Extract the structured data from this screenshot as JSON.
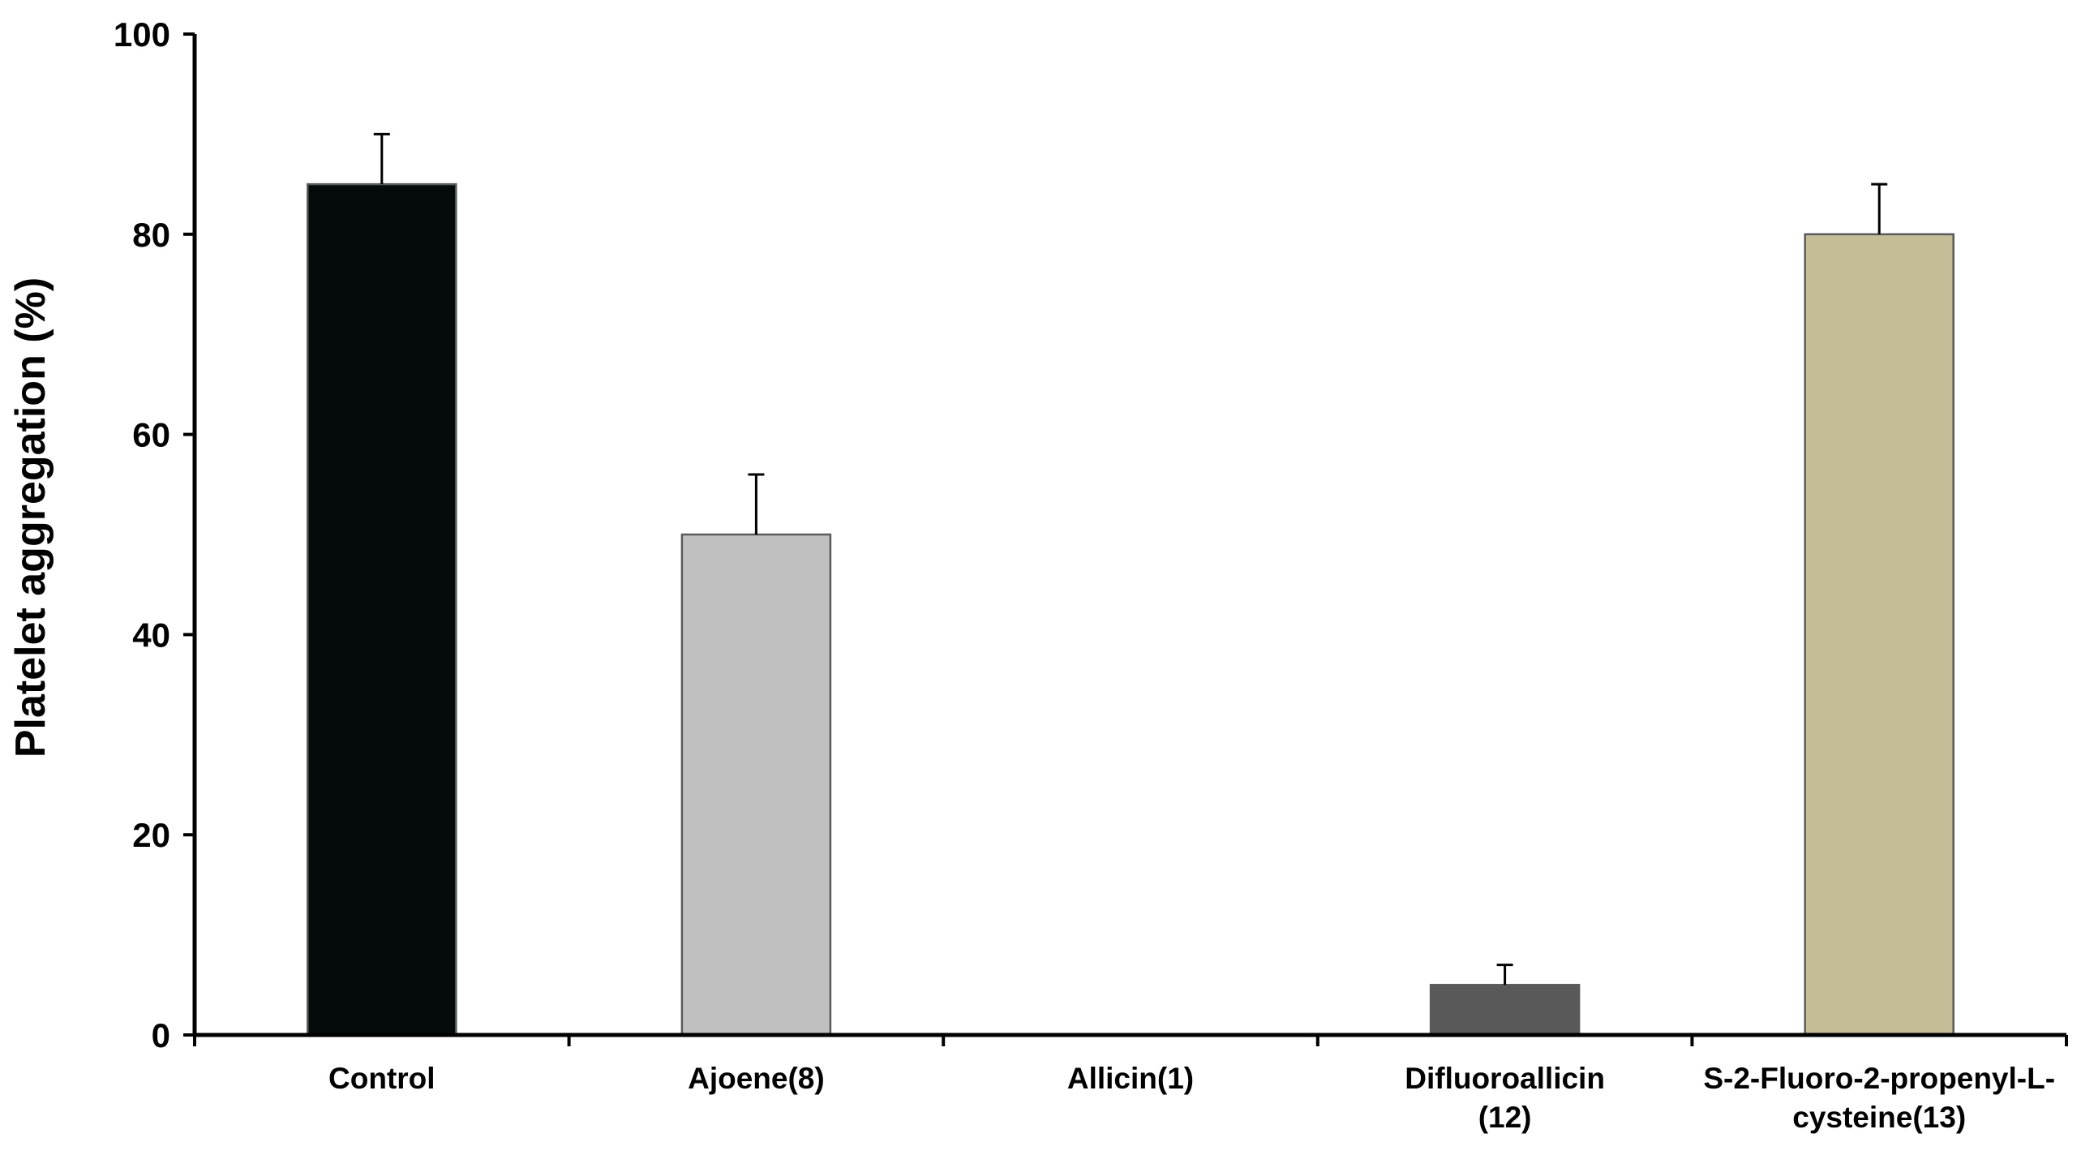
{
  "chart_data": {
    "type": "bar",
    "title": "",
    "xlabel": "",
    "ylabel": "Platelet aggregation (%)",
    "ylim": [
      0,
      100
    ],
    "yticks": [
      "0",
      "20",
      "40",
      "60",
      "80",
      "100"
    ],
    "grid": false,
    "legend": "none",
    "categories": [
      [
        "Control"
      ],
      [
        "Ajoene(8)"
      ],
      [
        "Allicin(1)"
      ],
      [
        "Difluoroallicin",
        "(12)"
      ],
      [
        "S-2-Fluoro-2-propenyl-L-",
        "cysteine(13)"
      ]
    ],
    "values": [
      85,
      50,
      0,
      5,
      80
    ],
    "errors": [
      5,
      6,
      0,
      2,
      5
    ],
    "colors": [
      "#050a0a",
      "#c0c0c0",
      "#ffffff",
      "#595959",
      "#c4bd97"
    ]
  }
}
